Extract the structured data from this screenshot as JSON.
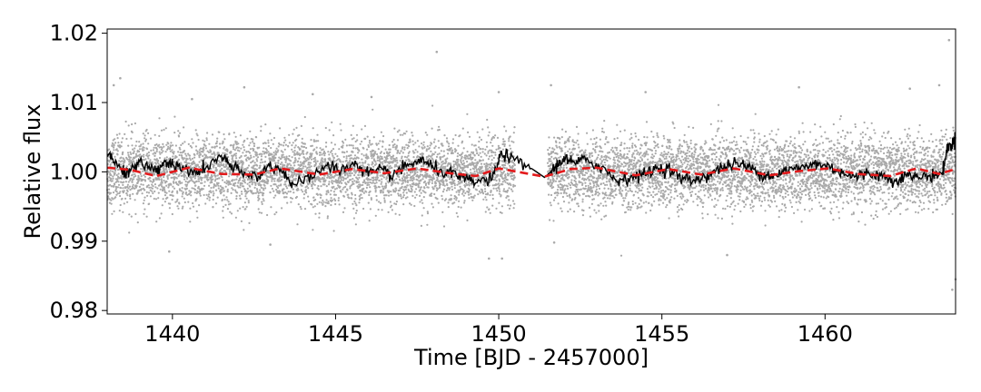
{
  "chart_data": {
    "type": "scatter",
    "xlabel": "Time [BJD - 2457000]",
    "ylabel": "Relative flux",
    "xlim": [
      1438.0,
      1464.0
    ],
    "ylim": [
      0.9795,
      1.0206
    ],
    "xticks": [
      1440,
      1445,
      1450,
      1455,
      1460
    ],
    "yticks": [
      0.98,
      0.99,
      1.0,
      1.01,
      1.02
    ],
    "xtick_labels": [
      "1440",
      "1445",
      "1450",
      "1455",
      "1460"
    ],
    "ytick_labels": [
      "0.98",
      "0.99",
      "1.00",
      "1.01",
      "1.02"
    ],
    "grid": false,
    "legend": "none",
    "data_gap": [
      1450.5,
      1451.5
    ],
    "series": [
      {
        "style": "scatter",
        "color": "#a9a9a9",
        "center": 1.0,
        "scatter": 0.0035,
        "description_points": [
          [
            1438.2,
            1.0125
          ],
          [
            1438.4,
            1.0135
          ],
          [
            1439.9,
            0.9885
          ],
          [
            1440.6,
            1.0105
          ],
          [
            1442.2,
            1.0122
          ],
          [
            1443.0,
            0.9895
          ],
          [
            1444.3,
            1.0112
          ],
          [
            1446.1,
            1.0108
          ],
          [
            1448.1,
            1.0173
          ],
          [
            1449.7,
            0.9875
          ],
          [
            1450.0,
            1.0115
          ],
          [
            1450.1,
            0.9875
          ],
          [
            1451.6,
            1.0125
          ],
          [
            1451.7,
            0.9898
          ],
          [
            1454.5,
            1.0115
          ],
          [
            1457.0,
            0.988
          ],
          [
            1459.2,
            1.0122
          ],
          [
            1462.6,
            1.012
          ],
          [
            1463.5,
            1.0125
          ],
          [
            1463.8,
            1.019
          ],
          [
            1463.9,
            0.983
          ],
          [
            1464.0,
            0.9845
          ]
        ]
      },
      {
        "style": "line",
        "color": "#000000",
        "points": [
          [
            1438.0,
            1.0028
          ],
          [
            1438.3,
            1.001
          ],
          [
            1438.6,
            0.9998
          ],
          [
            1439.0,
            1.0012
          ],
          [
            1439.5,
            1.0002
          ],
          [
            1439.8,
            1.0015
          ],
          [
            1440.1,
            1.0008
          ],
          [
            1440.6,
            0.9998
          ],
          [
            1441.0,
            1.0005
          ],
          [
            1441.5,
            1.0022
          ],
          [
            1441.8,
            1.0008
          ],
          [
            1442.2,
            0.9995
          ],
          [
            1442.6,
            0.9995
          ],
          [
            1443.0,
            1.0008
          ],
          [
            1443.4,
            1.0002
          ],
          [
            1443.7,
            0.9978
          ],
          [
            1444.2,
            0.9992
          ],
          [
            1444.7,
            1.0008
          ],
          [
            1445.2,
            1.0003
          ],
          [
            1445.6,
            1.0012
          ],
          [
            1446.0,
            0.9998
          ],
          [
            1446.4,
            1.0002
          ],
          [
            1446.7,
            0.9995
          ],
          [
            1447.2,
            1.0008
          ],
          [
            1447.6,
            1.0018
          ],
          [
            1448.0,
            1.0005
          ],
          [
            1448.5,
            0.9998
          ],
          [
            1448.9,
            0.999
          ],
          [
            1449.3,
            0.9985
          ],
          [
            1449.8,
            0.999
          ],
          [
            1450.1,
            1.0028
          ],
          [
            1450.4,
            1.0018
          ],
          [
            1451.0,
            1.0005
          ],
          [
            1451.4,
            0.9992
          ],
          [
            1451.6,
            1.0
          ],
          [
            1451.8,
            1.001
          ],
          [
            1452.0,
            1.002
          ],
          [
            1452.3,
            1.0012
          ],
          [
            1452.7,
            1.0018
          ],
          [
            1453.2,
            1.0005
          ],
          [
            1453.6,
            0.9988
          ],
          [
            1454.0,
            0.9992
          ],
          [
            1454.4,
            0.9995
          ],
          [
            1454.8,
            1.0005
          ],
          [
            1455.2,
            1.0005
          ],
          [
            1455.6,
            0.999
          ],
          [
            1456.0,
            0.9988
          ],
          [
            1456.4,
            0.9995
          ],
          [
            1456.8,
            1.0005
          ],
          [
            1457.2,
            1.0012
          ],
          [
            1457.6,
            1.0008
          ],
          [
            1458.0,
            0.9998
          ],
          [
            1458.4,
            0.9995
          ],
          [
            1458.8,
            1.0002
          ],
          [
            1459.2,
            1.0005
          ],
          [
            1459.7,
            1.0012
          ],
          [
            1460.1,
            1.0008
          ],
          [
            1460.5,
            1.0
          ],
          [
            1460.9,
            0.9992
          ],
          [
            1461.3,
            0.9998
          ],
          [
            1461.7,
            0.9995
          ],
          [
            1462.1,
            0.9988
          ],
          [
            1462.5,
            0.9995
          ],
          [
            1462.9,
            0.9992
          ],
          [
            1463.3,
            0.9995
          ],
          [
            1463.6,
            0.9998
          ],
          [
            1463.75,
            1.0035
          ],
          [
            1463.9,
            1.004
          ],
          [
            1464.0,
            1.005
          ]
        ]
      },
      {
        "style": "dashed-line",
        "color": "#e31a1c",
        "points": [
          [
            1438.0,
            1.0006
          ],
          [
            1438.7,
            1.0003
          ],
          [
            1439.5,
            0.9994
          ],
          [
            1440.5,
            1.0006
          ],
          [
            1441.5,
            0.9997
          ],
          [
            1442.5,
            0.9996
          ],
          [
            1443.3,
            1.0005
          ],
          [
            1444.5,
            0.9996
          ],
          [
            1445.5,
            1.0004
          ],
          [
            1446.5,
            0.9998
          ],
          [
            1447.5,
            1.0005
          ],
          [
            1448.5,
            0.9998
          ],
          [
            1449.3,
            0.9994
          ],
          [
            1450.0,
            1.0005
          ],
          [
            1451.4,
            0.9993
          ],
          [
            1452.2,
            1.0004
          ],
          [
            1453.0,
            1.0006
          ],
          [
            1454.2,
            0.9995
          ],
          [
            1455.2,
            1.0004
          ],
          [
            1456.2,
            0.9996
          ],
          [
            1457.2,
            1.0005
          ],
          [
            1458.3,
            0.9995
          ],
          [
            1459.2,
            1.0001
          ],
          [
            1460.1,
            1.0005
          ],
          [
            1461.0,
            0.9997
          ],
          [
            1462.0,
            0.9994
          ],
          [
            1462.8,
            1.0005
          ],
          [
            1463.5,
            0.9997
          ],
          [
            1464.0,
            1.0004
          ]
        ]
      }
    ]
  }
}
